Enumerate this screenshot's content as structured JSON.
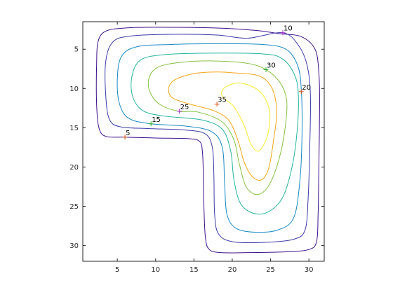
{
  "chart_data": {
    "type": "contour",
    "title": "",
    "xlabel": "",
    "ylabel": "",
    "xlim": [
      0.5,
      32.0
    ],
    "ylim": [
      1.5,
      32.0
    ],
    "y_direction": "reversed",
    "grid": false,
    "legend": "none",
    "x_ticks": [
      5,
      10,
      15,
      20,
      25,
      30
    ],
    "y_ticks": [
      5,
      10,
      15,
      20,
      25,
      30
    ],
    "x_tick_labels": [
      "5",
      "10",
      "15",
      "20",
      "25",
      "30"
    ],
    "y_tick_labels": [
      "5",
      "10",
      "15",
      "20",
      "25",
      "30"
    ],
    "levels": [
      {
        "value": 5,
        "color": "#3d0f8a",
        "points": [
          [
            26,
            3
          ],
          [
            29,
            3.4
          ],
          [
            30.8,
            5
          ],
          [
            31.3,
            8
          ],
          [
            31.4,
            12
          ],
          [
            31.3,
            20
          ],
          [
            31.2,
            26
          ],
          [
            31,
            29.5
          ],
          [
            30,
            30.5
          ],
          [
            27,
            30.8
          ],
          [
            22,
            30.9
          ],
          [
            18.5,
            30.9
          ],
          [
            17,
            30.5
          ],
          [
            16.5,
            29
          ],
          [
            16.3,
            25
          ],
          [
            16.2,
            20
          ],
          [
            16.1,
            18
          ],
          [
            15.8,
            16.8
          ],
          [
            14.5,
            16.4
          ],
          [
            10,
            16.3
          ],
          [
            6,
            16.2
          ],
          [
            3.5,
            16.1
          ],
          [
            2.6,
            15
          ],
          [
            2.3,
            12
          ],
          [
            2.3,
            7
          ],
          [
            2.5,
            4
          ],
          [
            3.5,
            2.7
          ],
          [
            6,
            2.3
          ],
          [
            10,
            2.2
          ],
          [
            18,
            2.3
          ],
          [
            23,
            2.6
          ],
          [
            26,
            3
          ]
        ]
      },
      {
        "value": 10,
        "color": "#3b3ba8",
        "points": [
          [
            22,
            3.6
          ],
          [
            26.6,
            2.9
          ],
          [
            28.7,
            4.6
          ],
          [
            29.8,
            7.2
          ],
          [
            30.2,
            11
          ],
          [
            30.1,
            18
          ],
          [
            29.9,
            24
          ],
          [
            29.5,
            28
          ],
          [
            28,
            29.2
          ],
          [
            24,
            29.6
          ],
          [
            20,
            29.5
          ],
          [
            18.2,
            28.5
          ],
          [
            17.7,
            26
          ],
          [
            17.6,
            21
          ],
          [
            17.4,
            17.5
          ],
          [
            16.5,
            15.8
          ],
          [
            14,
            15.3
          ],
          [
            9,
            15.1
          ],
          [
            5.5,
            14.9
          ],
          [
            4,
            14
          ],
          [
            3.5,
            11
          ],
          [
            3.5,
            6.5
          ],
          [
            4.5,
            4
          ],
          [
            7,
            3.3
          ],
          [
            12,
            3.1
          ],
          [
            18,
            3.2
          ],
          [
            22,
            3.6
          ]
        ]
      },
      {
        "value": 15,
        "color": "#1788c2",
        "points": [
          [
            24,
            4.4
          ],
          [
            27,
            5
          ],
          [
            28.5,
            7
          ],
          [
            29,
            10
          ],
          [
            29.1,
            16
          ],
          [
            28.8,
            22
          ],
          [
            28,
            26.5
          ],
          [
            26,
            28
          ],
          [
            23,
            28.3
          ],
          [
            20.5,
            27.8
          ],
          [
            19.3,
            26
          ],
          [
            19,
            22
          ],
          [
            18.7,
            17.5
          ],
          [
            17.3,
            15.5
          ],
          [
            14,
            14.8
          ],
          [
            9.4,
            14.5
          ],
          [
            6.5,
            13.8
          ],
          [
            5.3,
            12
          ],
          [
            5,
            9
          ],
          [
            5.5,
            6
          ],
          [
            7.5,
            4.7
          ],
          [
            12,
            4.4
          ],
          [
            18,
            4.3
          ],
          [
            24,
            4.4
          ]
        ]
      },
      {
        "value": 20,
        "color": "#25b39e",
        "points": [
          [
            24,
            5.6
          ],
          [
            26.5,
            6.2
          ],
          [
            28,
            8
          ],
          [
            28.6,
            10.4
          ],
          [
            28.5,
            15
          ],
          [
            27.8,
            20
          ],
          [
            26.5,
            24
          ],
          [
            24.5,
            25.8
          ],
          [
            22.5,
            25.8
          ],
          [
            21,
            24.5
          ],
          [
            20.2,
            21.5
          ],
          [
            19.8,
            18
          ],
          [
            18.7,
            15.2
          ],
          [
            16,
            14
          ],
          [
            11,
            13.5
          ],
          [
            8.3,
            12.8
          ],
          [
            7,
            11
          ],
          [
            6.9,
            8.5
          ],
          [
            8,
            6.4
          ],
          [
            11,
            5.7
          ],
          [
            17,
            5.5
          ],
          [
            24,
            5.6
          ]
        ]
      },
      {
        "value": 25,
        "color": "#86c240",
        "points": [
          [
            22,
            6.8
          ],
          [
            24.4,
            7.6
          ],
          [
            26.2,
            9.2
          ],
          [
            27.1,
            11.5
          ],
          [
            26.9,
            15
          ],
          [
            26.1,
            19
          ],
          [
            24.8,
            22.3
          ],
          [
            23.3,
            23.5
          ],
          [
            21.8,
            22.5
          ],
          [
            20.9,
            19.5
          ],
          [
            20.2,
            16.5
          ],
          [
            18.6,
            14.2
          ],
          [
            15.5,
            13
          ],
          [
            13,
            12.9
          ],
          [
            10.5,
            12
          ],
          [
            9.2,
            10.3
          ],
          [
            9.2,
            8.5
          ],
          [
            10.5,
            7.2
          ],
          [
            14,
            6.6
          ],
          [
            18,
            6.5
          ],
          [
            22,
            6.8
          ]
        ]
      },
      {
        "value": 30,
        "color": "#f2a418",
        "points": [
          [
            20,
            8
          ],
          [
            23.5,
            8.4
          ],
          [
            25.2,
            10
          ],
          [
            25.8,
            13
          ],
          [
            25.4,
            16.5
          ],
          [
            24.8,
            20
          ],
          [
            23.9,
            21.6
          ],
          [
            22.7,
            21.3
          ],
          [
            21.6,
            19.5
          ],
          [
            20.7,
            16.5
          ],
          [
            19.5,
            14
          ],
          [
            17.5,
            12.8
          ],
          [
            14.5,
            12
          ],
          [
            12.2,
            11.2
          ],
          [
            11.7,
            10
          ],
          [
            12.5,
            8.9
          ],
          [
            15,
            8.1
          ],
          [
            18,
            7.9
          ],
          [
            20,
            8
          ]
        ]
      },
      {
        "value": 35,
        "color": "#f6ea2a",
        "points": [
          [
            21,
            9.3
          ],
          [
            23.5,
            10.3
          ],
          [
            24.8,
            12.5
          ],
          [
            24.8,
            15
          ],
          [
            24.2,
            17
          ],
          [
            23.3,
            18
          ],
          [
            22.4,
            17
          ],
          [
            21.5,
            14.6
          ],
          [
            20.2,
            12.3
          ],
          [
            18.7,
            11
          ],
          [
            19,
            9.9
          ],
          [
            21,
            9.3
          ]
        ]
      }
    ],
    "label_markers": [
      {
        "text": "5",
        "x": 6.0,
        "y": 16.2,
        "color": "#d9541a"
      },
      {
        "text": "10",
        "x": 26.6,
        "y": 2.9,
        "color": "#a72ad0"
      },
      {
        "text": "15",
        "x": 9.4,
        "y": 14.5,
        "color": "#2faf2f"
      },
      {
        "text": "20",
        "x": 29.0,
        "y": 10.4,
        "color": "#d9541a"
      },
      {
        "text": "25",
        "x": 13.1,
        "y": 12.9,
        "color": "#a72ad0"
      },
      {
        "text": "30",
        "x": 24.4,
        "y": 7.6,
        "color": "#2faf2f"
      },
      {
        "text": "35",
        "x": 18.0,
        "y": 12.0,
        "color": "#d9541a"
      }
    ]
  },
  "colors": {
    "axes": "#262626",
    "background": "#ffffff"
  }
}
